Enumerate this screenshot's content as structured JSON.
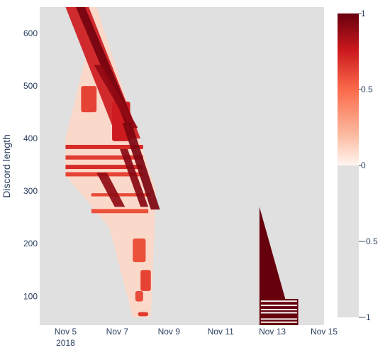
{
  "chart_data": {
    "type": "heatmap",
    "title": "",
    "xlabel": "",
    "ylabel": "Discord length",
    "background_color": "#e0e0e0",
    "x_ticks": [
      "Nov 5",
      "Nov 7",
      "Nov 9",
      "Nov 11",
      "Nov 13",
      "Nov 15"
    ],
    "x_tick_year": "2018",
    "xlim": [
      "2018-11-04",
      "2018-11-15"
    ],
    "y_ticks": [
      100,
      200,
      300,
      400,
      500,
      600
    ],
    "ylim": [
      45,
      650
    ],
    "colorscale": {
      "name": "Reds",
      "stops": [
        [
          0,
          "#e0e0e0"
        ],
        [
          0.5,
          "#e0e0e0"
        ],
        [
          0.5,
          "#fff5f0"
        ],
        [
          0.6,
          "#fcbba1"
        ],
        [
          0.75,
          "#fb6a4a"
        ],
        [
          0.88,
          "#cb181d"
        ],
        [
          1,
          "#67000d"
        ]
      ],
      "ticks": [
        {
          "value": 1,
          "label": "1"
        },
        {
          "value": 0.5,
          "label": "0.5"
        },
        {
          "value": 0,
          "label": "0"
        },
        {
          "value": -0.5,
          "label": "−0.5"
        },
        {
          "value": -1,
          "label": "−1"
        }
      ],
      "range": [
        -1,
        1
      ]
    },
    "regions": [
      {
        "kind": "band",
        "x_start": [
          "2018-11-05",
          650
        ],
        "x_end": [
          "2018-11-07",
          400
        ],
        "width_days": 0.9,
        "value": 0.75
      },
      {
        "kind": "band",
        "x_start": [
          "2018-11-05.4",
          650
        ],
        "x_end": [
          "2018-11-07.3",
          430
        ],
        "width_days": 0.35,
        "value": 0.97
      },
      {
        "kind": "band",
        "x_start": [
          "2018-11-06.1",
          540
        ],
        "x_end": [
          "2018-11-07.5",
          420
        ],
        "width_days": 0.3,
        "value": 0.9
      },
      {
        "kind": "band",
        "x_start": [
          "2018-11-07.2",
          430
        ],
        "x_end": [
          "2018-11-08.3",
          265
        ],
        "width_days": 0.35,
        "value": 0.95
      },
      {
        "kind": "band",
        "x_start": [
          "2018-11-06.2",
          335
        ],
        "x_end": [
          "2018-11-06.9",
          270
        ],
        "width_days": 0.4,
        "value": 0.9
      },
      {
        "kind": "band",
        "x_start": [
          "2018-11-07.1",
          380
        ],
        "x_end": [
          "2018-11-07.9",
          270
        ],
        "width_days": 0.3,
        "value": 0.92
      }
    ],
    "stripes": [
      {
        "x0": "2018-11-05.0",
        "x1": "2018-11-08.0",
        "y0": 380,
        "y1": 388,
        "value": 0.7
      },
      {
        "x0": "2018-11-05.0",
        "x1": "2018-11-08.0",
        "y0": 360,
        "y1": 368,
        "value": 0.65
      },
      {
        "x0": "2018-11-05.0",
        "x1": "2018-11-08.0",
        "y0": 342,
        "y1": 350,
        "value": 0.7
      },
      {
        "x0": "2018-11-05.0",
        "x1": "2018-11-08.0",
        "y0": 328,
        "y1": 336,
        "value": 0.62
      },
      {
        "x0": "2018-11-06.0",
        "x1": "2018-11-08.3",
        "y0": 290,
        "y1": 296,
        "value": 0.6
      },
      {
        "x0": "2018-11-06.0",
        "x1": "2018-11-08.2",
        "y0": 258,
        "y1": 266,
        "value": 0.58
      }
    ],
    "blobs": [
      {
        "x0": "2018-11-06.8",
        "x1": "2018-11-07.5",
        "y0": 395,
        "y1": 470,
        "value": 0.75
      },
      {
        "x0": "2018-11-05.6",
        "x1": "2018-11-06.2",
        "y0": 450,
        "y1": 500,
        "value": 0.62
      },
      {
        "x0": "2018-11-07.9",
        "x1": "2018-11-08.3",
        "y0": 110,
        "y1": 150,
        "value": 0.62
      },
      {
        "x0": "2018-11-07.7",
        "x1": "2018-11-08.0",
        "y0": 90,
        "y1": 110,
        "value": 0.6
      },
      {
        "x0": "2018-11-07.6",
        "x1": "2018-11-08.1",
        "y0": 165,
        "y1": 210,
        "value": 0.58
      },
      {
        "x0": "2018-11-07.8",
        "x1": "2018-11-08.2",
        "y0": 62,
        "y1": 70,
        "value": 0.65
      }
    ],
    "triangle": {
      "apex": [
        "2018-11-12.5",
        270
      ],
      "base_left": [
        "2018-11-12.5",
        95
      ],
      "base_right": [
        "2018-11-13.5",
        95
      ],
      "value": 1
    },
    "bottom_block": {
      "x0": "2018-11-12.5",
      "x1": "2018-11-14.0",
      "y0": 45,
      "y1": 95,
      "value": 1
    }
  }
}
